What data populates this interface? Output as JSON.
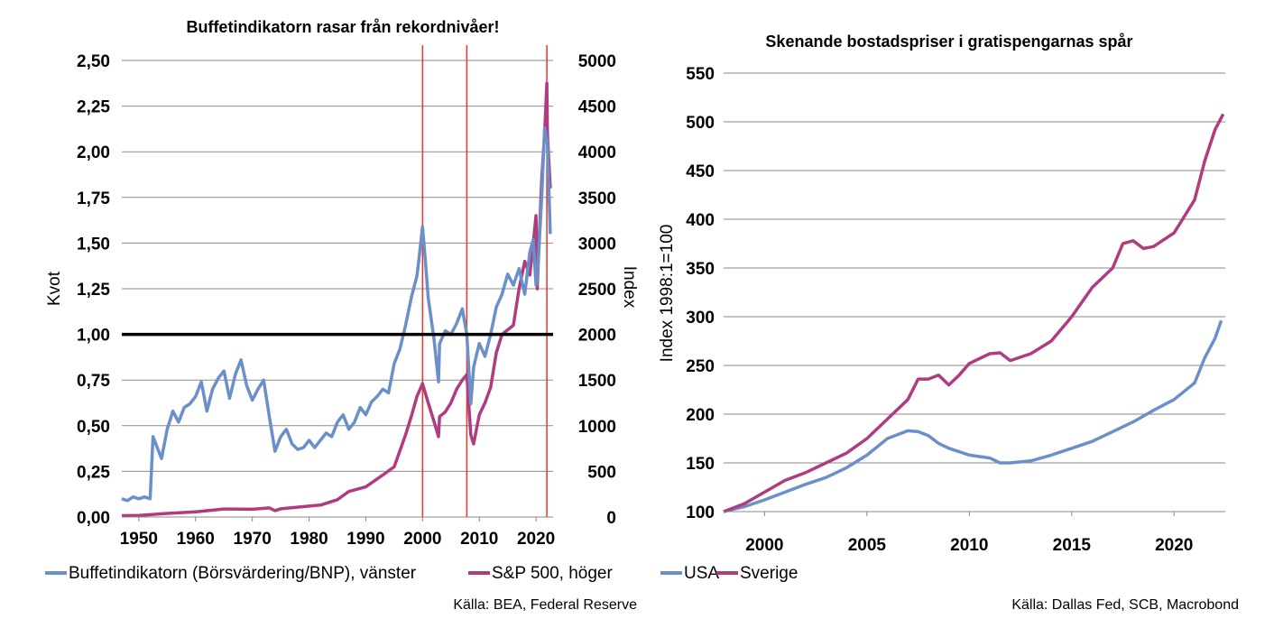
{
  "chart_data": [
    {
      "type": "line",
      "title": "Buffetindikatorn rasar från rekordnivåer!",
      "ylabel": "Kvot",
      "y2label": "Index",
      "xlim": [
        1947,
        2023
      ],
      "ylim": [
        0,
        2.5
      ],
      "y2lim": [
        0,
        5000
      ],
      "x_ticks": [
        "1950",
        "1960",
        "1970",
        "1980",
        "1990",
        "2000",
        "2010",
        "2020"
      ],
      "y_ticks": [
        "0,00",
        "0,25",
        "0,50",
        "0,75",
        "1,00",
        "1,25",
        "1,50",
        "1,75",
        "2,00",
        "2,25",
        "2,50"
      ],
      "y2_ticks": [
        "0",
        "500",
        "1000",
        "1500",
        "2000",
        "2500",
        "3000",
        "3500",
        "4000",
        "4500",
        "5000"
      ],
      "reference_line_y": 1.0,
      "vertical_lines_x": [
        2000,
        2007.8,
        2021.9
      ],
      "grid": true,
      "legend_position": "bottom",
      "series": [
        {
          "name": "Buffetindikatorn (Börsvärdering/BNP), vänster",
          "axis": "left",
          "color": "#6b8fc9",
          "x": [
            1947,
            1948,
            1949,
            1950,
            1951,
            1952,
            1952.5,
            1953,
            1954,
            1955,
            1956,
            1957,
            1958,
            1959,
            1960,
            1961,
            1962,
            1963,
            1964,
            1965,
            1966,
            1967,
            1968,
            1969,
            1970,
            1971,
            1972,
            1973,
            1974,
            1975,
            1976,
            1977,
            1978,
            1979,
            1980,
            1981,
            1982,
            1983,
            1984,
            1985,
            1986,
            1987,
            1988,
            1989,
            1990,
            1991,
            1992,
            1993,
            1994,
            1995,
            1996,
            1997,
            1998,
            1999,
            1999.5,
            2000,
            2000.5,
            2001,
            2002,
            2002.8,
            2003,
            2004,
            2005,
            2006,
            2007,
            2007.8,
            2008.5,
            2009,
            2010,
            2011,
            2012,
            2013,
            2014,
            2015,
            2016,
            2017,
            2018,
            2018.9,
            2019.5,
            2020,
            2020.2,
            2021,
            2021.5,
            2022,
            2022.5
          ],
          "values": [
            0.1,
            0.09,
            0.11,
            0.1,
            0.11,
            0.1,
            0.44,
            0.4,
            0.32,
            0.48,
            0.58,
            0.52,
            0.6,
            0.62,
            0.66,
            0.74,
            0.58,
            0.7,
            0.76,
            0.8,
            0.65,
            0.78,
            0.86,
            0.72,
            0.64,
            0.7,
            0.75,
            0.55,
            0.36,
            0.44,
            0.48,
            0.4,
            0.37,
            0.38,
            0.42,
            0.38,
            0.42,
            0.46,
            0.44,
            0.52,
            0.56,
            0.48,
            0.52,
            0.6,
            0.56,
            0.63,
            0.66,
            0.7,
            0.68,
            0.84,
            0.92,
            1.05,
            1.2,
            1.32,
            1.45,
            1.59,
            1.4,
            1.2,
            0.98,
            0.74,
            0.95,
            1.02,
            1.0,
            1.06,
            1.14,
            1.0,
            0.62,
            0.82,
            0.95,
            0.88,
            1.0,
            1.15,
            1.22,
            1.33,
            1.27,
            1.36,
            1.22,
            1.45,
            1.52,
            1.27,
            1.3,
            1.75,
            2.13,
            2.05,
            1.55
          ]
        },
        {
          "name": "S&P 500, höger",
          "axis": "right",
          "color": "#b03c80",
          "x": [
            1947,
            1950,
            1955,
            1960,
            1965,
            1970,
            1973,
            1974,
            1975,
            1980,
            1982,
            1985,
            1987,
            1990,
            1993,
            1995,
            1997,
            1998,
            1999,
            2000,
            2001,
            2002,
            2002.8,
            2003,
            2004,
            2005,
            2006,
            2007,
            2007.8,
            2008.5,
            2009,
            2010,
            2011,
            2012,
            2013,
            2014,
            2015,
            2016,
            2017,
            2018,
            2018.9,
            2019.5,
            2020,
            2020.2,
            2021,
            2021.5,
            2021.9,
            2022,
            2022.5
          ],
          "values": [
            15,
            18,
            40,
            56,
            88,
            85,
            100,
            70,
            90,
            120,
            130,
            190,
            280,
            330,
            460,
            550,
            900,
            1100,
            1320,
            1460,
            1250,
            1050,
            880,
            1100,
            1150,
            1250,
            1400,
            1500,
            1560,
            900,
            800,
            1120,
            1250,
            1420,
            1800,
            2000,
            2050,
            2100,
            2500,
            2800,
            2650,
            3000,
            3300,
            2500,
            3700,
            4200,
            4750,
            4200,
            3600
          ]
        }
      ],
      "source": "Källa: BEA, Federal Reserve"
    },
    {
      "type": "line",
      "title": "Skenande bostadspriser i gratispengarnas spår",
      "ylabel": "Index 1998:1=100",
      "xlim": [
        1998,
        2022.5
      ],
      "ylim": [
        100,
        550
      ],
      "x_ticks": [
        "2000",
        "2005",
        "2010",
        "2015",
        "2020"
      ],
      "y_ticks": [
        "100",
        "150",
        "200",
        "250",
        "300",
        "350",
        "400",
        "450",
        "500",
        "550"
      ],
      "grid": true,
      "legend_position": "bottom",
      "series": [
        {
          "name": "USA",
          "color": "#6b8fc9",
          "x": [
            1998,
            1999,
            2000,
            2001,
            2002,
            2003,
            2004,
            2005,
            2006,
            2007,
            2007.5,
            2008,
            2008.5,
            2009,
            2010,
            2011,
            2011.5,
            2012,
            2013,
            2014,
            2015,
            2016,
            2017,
            2018,
            2019,
            2020,
            2021,
            2021.5,
            2022,
            2022.3
          ],
          "values": [
            100,
            105,
            112,
            120,
            128,
            135,
            145,
            158,
            175,
            183,
            182,
            178,
            170,
            165,
            158,
            155,
            150,
            150,
            152,
            158,
            165,
            172,
            182,
            192,
            204,
            215,
            232,
            258,
            278,
            296
          ]
        },
        {
          "name": "Sverige",
          "color": "#b03c80",
          "x": [
            1998,
            1999,
            2000,
            2001,
            2002,
            2003,
            2004,
            2005,
            2006,
            2007,
            2007.5,
            2008,
            2008.5,
            2009,
            2009.5,
            2010,
            2011,
            2011.5,
            2012,
            2013,
            2014,
            2015,
            2016,
            2017,
            2017.5,
            2018,
            2018.5,
            2019,
            2020,
            2021,
            2021.5,
            2022,
            2022.4
          ],
          "values": [
            100,
            108,
            120,
            132,
            140,
            150,
            160,
            175,
            195,
            215,
            236,
            236,
            240,
            230,
            240,
            252,
            262,
            263,
            255,
            262,
            275,
            300,
            330,
            350,
            375,
            378,
            370,
            372,
            386,
            420,
            460,
            492,
            508
          ]
        }
      ],
      "source": "Källa: Dallas Fed, SCB, Macrobond"
    }
  ]
}
